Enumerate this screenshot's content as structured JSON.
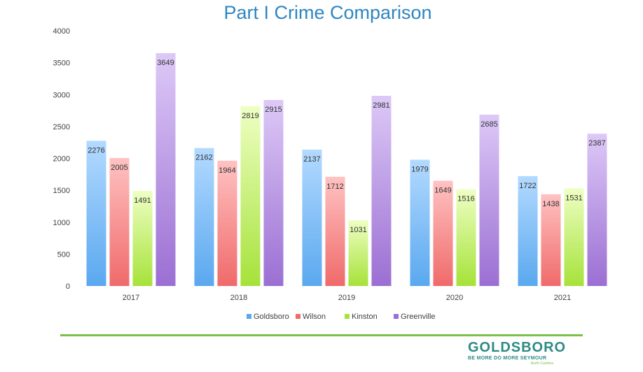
{
  "chart_data": {
    "type": "bar",
    "title": "Part I Crime Comparison",
    "categories": [
      "2017",
      "2018",
      "2019",
      "2020",
      "2021"
    ],
    "series": [
      {
        "name": "Goldsboro",
        "values": [
          2276,
          2162,
          2137,
          1979,
          1722
        ],
        "color": "#5aa8ef",
        "color_light": "#b3daff"
      },
      {
        "name": "Wilson",
        "values": [
          2005,
          1964,
          1712,
          1649,
          1438
        ],
        "color": "#f06a6a",
        "color_light": "#ffc2c2"
      },
      {
        "name": "Kinston",
        "values": [
          1491,
          2819,
          1031,
          1516,
          1531
        ],
        "color": "#a6e23a",
        "color_light": "#eeffc4"
      },
      {
        "name": "Greenville",
        "values": [
          3649,
          2915,
          2981,
          2685,
          2387
        ],
        "color": "#9b6fd3",
        "color_light": "#ddc9f7"
      }
    ],
    "ylim": [
      0,
      4000
    ],
    "yticks": [
      0,
      500,
      1000,
      1500,
      2000,
      2500,
      3000,
      3500,
      4000
    ],
    "grid": false,
    "legend_position": "bottom",
    "xlabel": "",
    "ylabel": ""
  },
  "logo": {
    "word": "GOLDSBORO",
    "tagline": "BE MORE  DO MORE  SEYMOUR",
    "sub": "North Carolina"
  },
  "colors": {
    "title": "#2e86c1",
    "divider": "#7ac143",
    "logo": "#2e8b83"
  }
}
